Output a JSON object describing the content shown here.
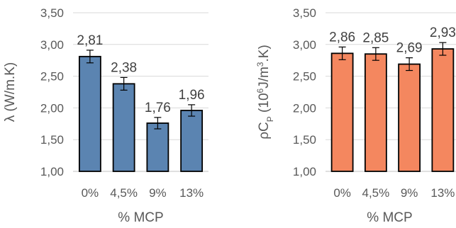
{
  "chart_data": [
    {
      "type": "bar",
      "categories": [
        "0%",
        "4,5%",
        "9%",
        "13%"
      ],
      "values": [
        2.81,
        2.38,
        1.76,
        1.96
      ],
      "value_labels": [
        "2,81",
        "2,38",
        "1,76",
        "1,96"
      ],
      "error": [
        0.1,
        0.1,
        0.09,
        0.09
      ],
      "xlabel": "% MCP",
      "ylabel": "λ (W/m.K)",
      "ylim": [
        1.0,
        3.5
      ],
      "yticks": [
        "1,00",
        "1,50",
        "2,00",
        "2,50",
        "3,00",
        "3,50"
      ],
      "bar_color": "#5b84b1",
      "grid": true
    },
    {
      "type": "bar",
      "categories": [
        "0%",
        "4,5%",
        "9%",
        "13%"
      ],
      "values": [
        2.86,
        2.85,
        2.69,
        2.93
      ],
      "value_labels": [
        "2,86",
        "2,85",
        "2,69",
        "2,93"
      ],
      "error": [
        0.1,
        0.1,
        0.1,
        0.1
      ],
      "xlabel": "% MCP",
      "ylabel_parts": [
        "ρC",
        "P",
        " (10",
        "6",
        "J/m",
        "3",
        ".K)"
      ],
      "ylim": [
        1.0,
        3.5
      ],
      "yticks": [
        "1,00",
        "1,50",
        "2,00",
        "2,50",
        "3,00",
        "3,50"
      ],
      "bar_color": "#f4875f",
      "grid": true
    }
  ]
}
